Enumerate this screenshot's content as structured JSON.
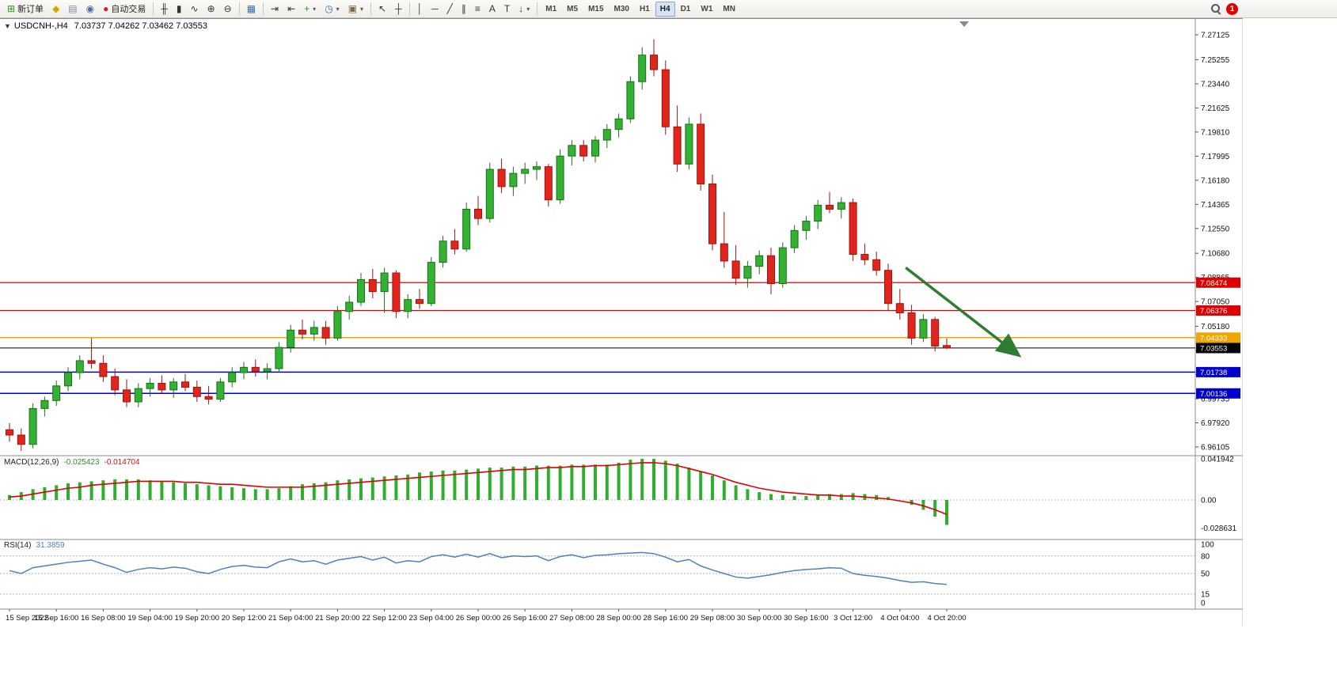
{
  "toolbar": {
    "items": [
      {
        "type": "button",
        "name": "new-order-button",
        "icon": "new-order-icon",
        "glyph": "⊞",
        "color": "#1a9a1a",
        "label": "新订单"
      },
      {
        "type": "icon",
        "name": "favorites-button",
        "icon": "star-icon",
        "glyph": "◆",
        "color": "#d8a400"
      },
      {
        "type": "icon",
        "name": "print-button",
        "icon": "print-icon",
        "glyph": "▤",
        "color": "#7a8aa0"
      },
      {
        "type": "icon",
        "name": "news-button",
        "icon": "news-icon",
        "glyph": "◉",
        "color": "#4a6fa5"
      },
      {
        "type": "button",
        "name": "autotrade-button",
        "icon": "autotrade-status-icon",
        "glyph": "●",
        "color": "#d42222",
        "label": "自动交易"
      },
      {
        "type": "sep"
      },
      {
        "type": "icon",
        "name": "bar-chart-mode-button",
        "icon": "bar-chart-icon",
        "glyph": "╫",
        "color": "#333333"
      },
      {
        "type": "icon",
        "name": "candlestick-mode-button",
        "icon": "candlestick-icon",
        "glyph": "▮",
        "color": "#333333"
      },
      {
        "type": "icon",
        "name": "line-chart-mode-button",
        "icon": "line-chart-icon",
        "glyph": "∿",
        "color": "#333333"
      },
      {
        "type": "icon",
        "name": "zoom-in-button",
        "icon": "zoom-in-icon",
        "glyph": "⊕",
        "color": "#333333"
      },
      {
        "type": "icon",
        "name": "zoom-out-button",
        "icon": "zoom-out-icon",
        "glyph": "⊖",
        "color": "#333333"
      },
      {
        "type": "sep"
      },
      {
        "type": "icon",
        "name": "tile-windows-button",
        "icon": "tile-windows-icon",
        "glyph": "▦",
        "color": "#3a6ea5"
      },
      {
        "type": "sep"
      },
      {
        "type": "icon",
        "name": "auto-scroll-button",
        "icon": "auto-scroll-icon",
        "glyph": "⇥",
        "color": "#333333"
      },
      {
        "type": "icon",
        "name": "chart-shift-button",
        "icon": "chart-shift-icon",
        "glyph": "⇤",
        "color": "#333333"
      },
      {
        "type": "dropdown",
        "name": "indicators-button",
        "icon": "add-indicator-icon",
        "glyph": "+",
        "color": "#1a9a1a"
      },
      {
        "type": "dropdown",
        "name": "periods-button",
        "icon": "clock-icon",
        "glyph": "◷",
        "color": "#3a6ea5"
      },
      {
        "type": "dropdown",
        "name": "templates-button",
        "icon": "template-icon",
        "glyph": "▣",
        "color": "#7a6a4a"
      },
      {
        "type": "sep"
      },
      {
        "type": "icon",
        "name": "cursor-button",
        "icon": "cursor-icon",
        "glyph": "↖",
        "color": "#333333"
      },
      {
        "type": "icon",
        "name": "crosshair-button",
        "icon": "crosshair-icon",
        "glyph": "┼",
        "color": "#333333"
      },
      {
        "type": "sep"
      },
      {
        "type": "icon",
        "name": "vertical-line-button",
        "icon": "vertical-line-icon",
        "glyph": "│",
        "color": "#333333"
      },
      {
        "type": "icon",
        "name": "horizontal-line-button",
        "icon": "horizontal-line-icon",
        "glyph": "─",
        "color": "#333333"
      },
      {
        "type": "icon",
        "name": "trendline-button",
        "icon": "trendline-icon",
        "glyph": "╱",
        "color": "#333333"
      },
      {
        "type": "icon",
        "name": "channel-button",
        "icon": "channel-icon",
        "glyph": "∥",
        "color": "#333333"
      },
      {
        "type": "icon",
        "name": "fibonacci-button",
        "icon": "fibonacci-icon",
        "glyph": "≡",
        "color": "#333333"
      },
      {
        "type": "icon",
        "name": "text-button",
        "icon": "text-icon",
        "glyph": "A",
        "color": "#333333"
      },
      {
        "type": "icon",
        "name": "text-label-button",
        "icon": "text-label-icon",
        "glyph": "T",
        "color": "#333333"
      },
      {
        "type": "dropdown",
        "name": "arrows-button",
        "icon": "arrow-objects-icon",
        "glyph": "↓",
        "color": "#333333"
      },
      {
        "type": "sep"
      },
      {
        "type": "tf",
        "name": "timeframe-m1",
        "label": "M1"
      },
      {
        "type": "tf",
        "name": "timeframe-m5",
        "label": "M5"
      },
      {
        "type": "tf",
        "name": "timeframe-m15",
        "label": "M15"
      },
      {
        "type": "tf",
        "name": "timeframe-m30",
        "label": "M30"
      },
      {
        "type": "tf",
        "name": "timeframe-h1",
        "label": "H1"
      },
      {
        "type": "tf",
        "name": "timeframe-h4",
        "label": "H4",
        "active": true
      },
      {
        "type": "tf",
        "name": "timeframe-d1",
        "label": "D1"
      },
      {
        "type": "tf",
        "name": "timeframe-w1",
        "label": "W1"
      },
      {
        "type": "tf",
        "name": "timeframe-mn",
        "label": "MN"
      },
      {
        "type": "spacer"
      },
      {
        "type": "icon",
        "name": "search-button",
        "icon": "search-icon",
        "glyph": "css:magnifier"
      },
      {
        "type": "badge",
        "name": "notification-badge",
        "label": "1",
        "color": "#e00000"
      }
    ]
  },
  "chart": {
    "collapse_icon": "▼",
    "symbol": "USDCNH-,H4",
    "ohlc": "7.03737 7.04262 7.03462 7.03553"
  },
  "macd_panel": {
    "label": "MACD(12,26,9)",
    "main_value": "-0.025423",
    "signal_value": "-0.014704"
  },
  "rsi_panel": {
    "label": "RSI(14)",
    "value": "31.3859"
  },
  "chart_data": {
    "type": "candlestick",
    "symbol": "USDCNH-",
    "timeframe": "H4",
    "price_axis": {
      "max": 7.27125,
      "min": 6.96105,
      "ticks": [
        "7.27125",
        "7.25255",
        "7.23440",
        "7.21625",
        "7.19810",
        "7.17995",
        "7.16180",
        "7.14365",
        "7.12550",
        "7.10680",
        "7.08865",
        "7.07050",
        "7.05180",
        "7.03365",
        "7.01550",
        "6.99735",
        "6.97920",
        "6.96105"
      ]
    },
    "time_axis": {
      "bar_step": 4,
      "labels": [
        "15 Sep 2022",
        "15 Sep 16:00",
        "16 Sep 08:00",
        "19 Sep 04:00",
        "19 Sep 20:00",
        "20 Sep 12:00",
        "21 Sep 04:00",
        "21 Sep 20:00",
        "22 Sep 12:00",
        "23 Sep 04:00",
        "26 Sep 00:00",
        "26 Sep 16:00",
        "27 Sep 08:00",
        "28 Sep 00:00",
        "28 Sep 16:00",
        "29 Sep 08:00",
        "30 Sep 00:00",
        "30 Sep 16:00",
        "3 Oct 12:00",
        "4 Oct 04:00",
        "4 Oct 20:00"
      ]
    },
    "candles": [
      [
        6.974,
        6.979,
        6.965,
        6.97
      ],
      [
        6.97,
        6.975,
        6.958,
        6.963
      ],
      [
        6.963,
        6.994,
        6.96,
        6.99
      ],
      [
        6.99,
        6.999,
        6.984,
        6.996
      ],
      [
        6.996,
        7.011,
        6.992,
        7.007
      ],
      [
        7.007,
        7.021,
        7.003,
        7.017
      ],
      [
        7.017,
        7.03,
        7.012,
        7.026
      ],
      [
        7.026,
        7.043,
        7.02,
        7.024
      ],
      [
        7.024,
        7.03,
        7.01,
        7.014
      ],
      [
        7.014,
        7.02,
        7.0,
        7.004
      ],
      [
        7.004,
        7.012,
        6.991,
        6.995
      ],
      [
        6.995,
        7.009,
        6.991,
        7.005
      ],
      [
        7.005,
        7.013,
        6.999,
        7.009
      ],
      [
        7.009,
        7.015,
        7.001,
        7.004
      ],
      [
        7.004,
        7.013,
        6.998,
        7.01
      ],
      [
        7.01,
        7.016,
        7.003,
        7.006
      ],
      [
        7.006,
        7.011,
        6.995,
        6.999
      ],
      [
        6.999,
        7.007,
        6.993,
        6.997
      ],
      [
        6.997,
        7.013,
        6.995,
        7.01
      ],
      [
        7.01,
        7.021,
        7.006,
        7.017
      ],
      [
        7.017,
        7.025,
        7.012,
        7.021
      ],
      [
        7.021,
        7.027,
        7.014,
        7.018
      ],
      [
        7.018,
        7.024,
        7.012,
        7.02
      ],
      [
        7.02,
        7.04,
        7.017,
        7.036
      ],
      [
        7.036,
        7.053,
        7.032,
        7.049
      ],
      [
        7.049,
        7.057,
        7.042,
        7.046
      ],
      [
        7.046,
        7.056,
        7.041,
        7.051
      ],
      [
        7.051,
        7.056,
        7.038,
        7.043
      ],
      [
        7.043,
        7.067,
        7.041,
        7.063
      ],
      [
        7.063,
        7.075,
        7.057,
        7.07
      ],
      [
        7.07,
        7.092,
        7.067,
        7.087
      ],
      [
        7.087,
        7.095,
        7.073,
        7.078
      ],
      [
        7.078,
        7.096,
        7.062,
        7.092
      ],
      [
        7.092,
        7.094,
        7.058,
        7.063
      ],
      [
        7.063,
        7.076,
        7.058,
        7.072
      ],
      [
        7.072,
        7.08,
        7.065,
        7.069
      ],
      [
        7.069,
        7.104,
        7.067,
        7.1
      ],
      [
        7.1,
        7.12,
        7.096,
        7.116
      ],
      [
        7.116,
        7.125,
        7.106,
        7.11
      ],
      [
        7.11,
        7.145,
        7.108,
        7.14
      ],
      [
        7.14,
        7.15,
        7.128,
        7.133
      ],
      [
        7.133,
        7.175,
        7.13,
        7.17
      ],
      [
        7.17,
        7.178,
        7.152,
        7.157
      ],
      [
        7.157,
        7.172,
        7.15,
        7.167
      ],
      [
        7.167,
        7.175,
        7.159,
        7.17
      ],
      [
        7.17,
        7.176,
        7.162,
        7.172
      ],
      [
        7.172,
        7.174,
        7.142,
        7.147
      ],
      [
        7.147,
        7.185,
        7.144,
        7.18
      ],
      [
        7.18,
        7.192,
        7.173,
        7.188
      ],
      [
        7.188,
        7.192,
        7.176,
        7.18
      ],
      [
        7.18,
        7.195,
        7.175,
        7.192
      ],
      [
        7.192,
        7.204,
        7.186,
        7.2
      ],
      [
        7.2,
        7.212,
        7.194,
        7.208
      ],
      [
        7.208,
        7.24,
        7.205,
        7.236
      ],
      [
        7.236,
        7.262,
        7.23,
        7.256
      ],
      [
        7.256,
        7.268,
        7.24,
        7.245
      ],
      [
        7.245,
        7.252,
        7.196,
        7.202
      ],
      [
        7.202,
        7.218,
        7.168,
        7.174
      ],
      [
        7.174,
        7.209,
        7.17,
        7.204
      ],
      [
        7.204,
        7.212,
        7.154,
        7.159
      ],
      [
        7.159,
        7.166,
        7.109,
        7.114
      ],
      [
        7.114,
        7.138,
        7.096,
        7.101
      ],
      [
        7.101,
        7.113,
        7.083,
        7.088
      ],
      [
        7.088,
        7.101,
        7.081,
        7.097
      ],
      [
        7.097,
        7.109,
        7.091,
        7.105
      ],
      [
        7.105,
        7.111,
        7.076,
        7.084
      ],
      [
        7.084,
        7.115,
        7.081,
        7.111
      ],
      [
        7.111,
        7.128,
        7.107,
        7.124
      ],
      [
        7.124,
        7.135,
        7.117,
        7.131
      ],
      [
        7.131,
        7.147,
        7.125,
        7.143
      ],
      [
        7.143,
        7.153,
        7.137,
        7.14
      ],
      [
        7.14,
        7.149,
        7.133,
        7.145
      ],
      [
        7.145,
        7.148,
        7.101,
        7.106
      ],
      [
        7.106,
        7.114,
        7.098,
        7.102
      ],
      [
        7.102,
        7.108,
        7.09,
        7.094
      ],
      [
        7.094,
        7.099,
        7.064,
        7.069
      ],
      [
        7.069,
        7.08,
        7.057,
        7.062
      ],
      [
        7.062,
        7.068,
        7.038,
        7.043
      ],
      [
        7.043,
        7.061,
        7.04,
        7.057
      ],
      [
        7.057,
        7.059,
        7.033,
        7.037
      ],
      [
        7.03737,
        7.04262,
        7.03462,
        7.03553
      ]
    ],
    "hlines": [
      {
        "price": 7.08474,
        "label": "7.08474",
        "color": "#e00000",
        "text_color": "#ffffff",
        "width": 1.2
      },
      {
        "price": 7.06376,
        "label": "7.06376",
        "color": "#e00000",
        "text_color": "#ffffff",
        "width": 1.2
      },
      {
        "price": 7.04333,
        "label": "7.04333",
        "color": "#f0a500",
        "text_color": "#ffffff",
        "width": 1.5
      },
      {
        "price": 7.03553,
        "label": "7.03553",
        "color": "#000000",
        "text_color": "#ffffff",
        "width": 1,
        "role": "bid"
      },
      {
        "price": 7.01738,
        "label": "7.01738",
        "color": "#0000cc",
        "text_color": "#ffffff",
        "width": 1.5
      },
      {
        "price": 7.00136,
        "label": "7.00136",
        "color": "#0000cc",
        "text_color": "#ffffff",
        "width": 1.5
      }
    ],
    "arrow": {
      "from_bar": 76.5,
      "from_price": 7.096,
      "to_bar": 86,
      "to_price": 7.031,
      "color": "#2e7d32"
    },
    "macd": {
      "name": "MACD(12,26,9)",
      "histogram": [
        0.005,
        0.008,
        0.011,
        0.013,
        0.015,
        0.017,
        0.018,
        0.019,
        0.02,
        0.021,
        0.021,
        0.021,
        0.02,
        0.019,
        0.018,
        0.017,
        0.016,
        0.015,
        0.014,
        0.013,
        0.012,
        0.011,
        0.011,
        0.012,
        0.014,
        0.016,
        0.017,
        0.018,
        0.02,
        0.021,
        0.022,
        0.023,
        0.024,
        0.025,
        0.026,
        0.028,
        0.029,
        0.03,
        0.03,
        0.031,
        0.032,
        0.033,
        0.033,
        0.034,
        0.034,
        0.035,
        0.035,
        0.035,
        0.036,
        0.036,
        0.036,
        0.036,
        0.038,
        0.041,
        0.042,
        0.0419,
        0.04,
        0.037,
        0.033,
        0.029,
        0.025,
        0.02,
        0.015,
        0.011,
        0.008,
        0.006,
        0.005,
        0.004,
        0.004,
        0.005,
        0.006,
        0.006,
        0.007,
        0.006,
        0.005,
        0.003,
        0.0,
        -0.005,
        -0.01,
        -0.017,
        -0.0254
      ],
      "signal": [
        0.003,
        0.004,
        0.006,
        0.008,
        0.01,
        0.012,
        0.013,
        0.015,
        0.016,
        0.017,
        0.018,
        0.019,
        0.019,
        0.019,
        0.019,
        0.018,
        0.018,
        0.017,
        0.016,
        0.016,
        0.015,
        0.014,
        0.013,
        0.013,
        0.013,
        0.013,
        0.014,
        0.015,
        0.016,
        0.017,
        0.018,
        0.019,
        0.02,
        0.021,
        0.022,
        0.023,
        0.024,
        0.025,
        0.026,
        0.027,
        0.028,
        0.029,
        0.03,
        0.031,
        0.031,
        0.032,
        0.033,
        0.033,
        0.034,
        0.034,
        0.035,
        0.035,
        0.036,
        0.037,
        0.038,
        0.038,
        0.037,
        0.035,
        0.032,
        0.029,
        0.026,
        0.022,
        0.018,
        0.015,
        0.012,
        0.01,
        0.008,
        0.007,
        0.006,
        0.005,
        0.005,
        0.004,
        0.004,
        0.003,
        0.002,
        0.001,
        -0.001,
        -0.003,
        -0.006,
        -0.01,
        -0.0147
      ],
      "axis_labels": [
        {
          "text": "0.041942",
          "value": 0.041942
        },
        {
          "text": "0.00",
          "value": 0
        },
        {
          "text": "-0.028631",
          "value": -0.028631
        }
      ]
    },
    "rsi": {
      "name": "RSI(14)",
      "values": [
        55,
        50,
        60,
        63,
        66,
        69,
        71,
        73,
        66,
        60,
        52,
        57,
        60,
        58,
        61,
        59,
        53,
        50,
        57,
        62,
        64,
        61,
        60,
        70,
        75,
        70,
        72,
        66,
        73,
        76,
        79,
        73,
        78,
        68,
        72,
        70,
        79,
        82,
        78,
        83,
        78,
        84,
        77,
        80,
        79,
        80,
        72,
        79,
        82,
        77,
        81,
        82,
        84,
        85,
        86,
        84,
        78,
        70,
        74,
        63,
        56,
        50,
        44,
        42,
        45,
        48,
        52,
        55,
        57,
        58,
        60,
        59,
        50,
        47,
        45,
        42,
        38,
        35,
        36,
        33,
        31.39
      ],
      "levels": [
        {
          "text": "100",
          "value": 100,
          "dashed": false
        },
        {
          "text": "80",
          "value": 80,
          "dashed": true
        },
        {
          "text": "50",
          "value": 50,
          "dashed": true
        },
        {
          "text": "15",
          "value": 15,
          "dashed": true
        },
        {
          "text": "0",
          "value": 0,
          "dashed": false
        }
      ]
    },
    "colors": {
      "bull": "#33b133",
      "bull_border": "#1c6f1c",
      "bear": "#e1251d",
      "bear_border": "#9e130d",
      "macd_bar": "#2fae2f",
      "macd_signal": "#e00000",
      "rsi_line": "#4f81bd",
      "separator": "#8c8c8c",
      "level_dash": "#b5b5b5"
    }
  }
}
